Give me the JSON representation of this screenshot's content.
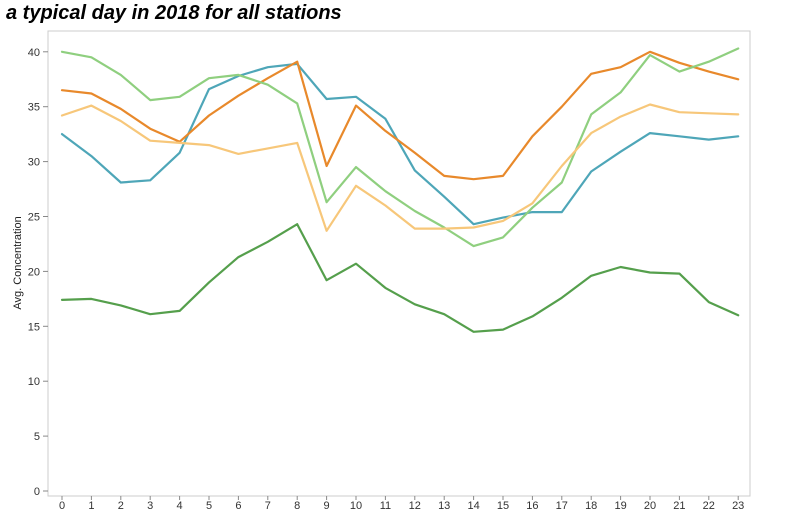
{
  "chart_data": {
    "type": "line",
    "title": "a typical day in 2018 for all stations",
    "xlabel": "",
    "ylabel": "Avg. Concentration",
    "x": [
      0,
      1,
      2,
      3,
      4,
      5,
      6,
      7,
      8,
      9,
      10,
      11,
      12,
      13,
      14,
      15,
      16,
      17,
      18,
      19,
      20,
      21,
      22,
      23
    ],
    "ylim": [
      0,
      42
    ],
    "yticks": [
      0,
      5,
      10,
      15,
      20,
      25,
      30,
      35,
      40
    ],
    "grid": false,
    "legend": "none",
    "series": [
      {
        "color": "#4ea6b8",
        "values": [
          32.5,
          30.5,
          28.1,
          28.3,
          30.8,
          36.6,
          37.8,
          38.6,
          38.9,
          35.7,
          35.9,
          33.9,
          29.2,
          26.8,
          24.3,
          24.9,
          25.4,
          25.4,
          29.1,
          30.9,
          32.6,
          32.3,
          32.0,
          32.3
        ]
      },
      {
        "color": "#e8892b",
        "values": [
          36.5,
          36.2,
          34.8,
          33.0,
          31.8,
          34.2,
          36.0,
          37.6,
          39.1,
          29.6,
          35.1,
          32.8,
          30.8,
          28.7,
          28.4,
          28.7,
          32.3,
          35.0,
          38.0,
          38.6,
          40.0,
          39.0,
          38.2,
          37.5
        ]
      },
      {
        "color": "#8fcf7f",
        "values": [
          40.0,
          39.5,
          37.9,
          35.6,
          35.9,
          37.6,
          37.9,
          37.0,
          35.3,
          26.3,
          29.5,
          27.3,
          25.5,
          24.0,
          22.3,
          23.1,
          25.8,
          28.1,
          34.3,
          36.3,
          39.7,
          38.2,
          39.1,
          40.3
        ]
      },
      {
        "color": "#f7c77a",
        "values": [
          34.2,
          35.1,
          33.7,
          31.9,
          31.7,
          31.5,
          30.7,
          31.2,
          31.7,
          23.7,
          27.8,
          26.0,
          23.9,
          23.9,
          24.0,
          24.6,
          26.2,
          29.6,
          32.6,
          34.1,
          35.2,
          34.5,
          34.4,
          34.3
        ]
      },
      {
        "color": "#559f4c",
        "values": [
          17.4,
          17.5,
          16.9,
          16.1,
          16.4,
          19.0,
          21.3,
          22.7,
          24.3,
          19.2,
          20.7,
          18.5,
          17.0,
          16.1,
          14.5,
          14.7,
          15.9,
          17.6,
          19.6,
          20.4,
          19.9,
          19.8,
          17.2,
          16.0
        ]
      }
    ]
  }
}
